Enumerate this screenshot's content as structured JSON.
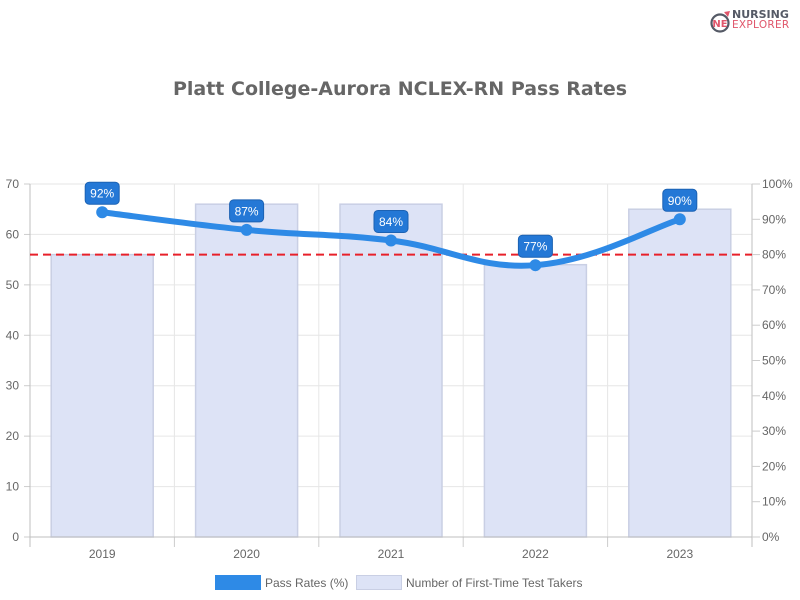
{
  "logo": {
    "line1": "NURSING",
    "line2": "EXPLORER",
    "mark": "NE"
  },
  "chart_data": {
    "type": "bar+line",
    "title": "Platt College-Aurora NCLEX-RN Pass Rates",
    "categories": [
      "2019",
      "2020",
      "2021",
      "2022",
      "2023"
    ],
    "series": [
      {
        "name": "Pass Rates (%)",
        "type": "line",
        "axis": "right",
        "values": [
          92,
          87,
          84,
          77,
          90
        ],
        "labels": [
          "92%",
          "87%",
          "84%",
          "77%",
          "90%"
        ],
        "color": "#2e8ae6"
      },
      {
        "name": "Number of First-Time Test Takers",
        "type": "bar",
        "axis": "left",
        "values": [
          56,
          66,
          66,
          54,
          65
        ],
        "color": "#dde3f6"
      }
    ],
    "reference_line": {
      "value": 80,
      "axis": "right",
      "color": "#e8202a",
      "style": "dashed"
    },
    "left_axis": {
      "ylim": [
        0,
        70
      ],
      "ticks": [
        "0",
        "10",
        "20",
        "30",
        "40",
        "50",
        "60",
        "70"
      ]
    },
    "right_axis": {
      "ylim": [
        0,
        100
      ],
      "ticks": [
        "0%",
        "10%",
        "20%",
        "30%",
        "40%",
        "50%",
        "60%",
        "70%",
        "80%",
        "90%",
        "100%"
      ]
    },
    "xlabel": "",
    "ylabel": "",
    "grid": true,
    "legend_position": "bottom"
  },
  "legend": {
    "line_label": "Pass Rates (%)",
    "bar_label": "Number of First-Time Test Takers"
  }
}
